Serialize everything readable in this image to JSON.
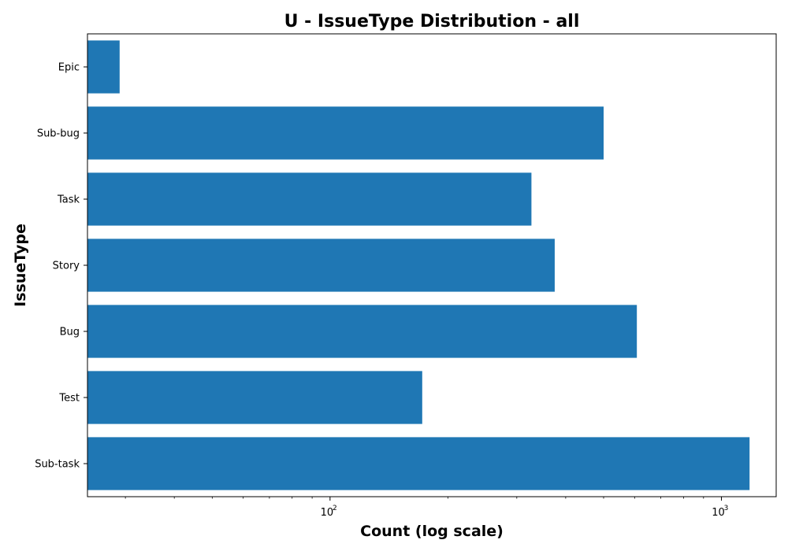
{
  "chart_data": {
    "type": "bar",
    "orientation": "horizontal",
    "title": "U - IssueType Distribution - all",
    "xlabel": "Count (log scale)",
    "ylabel": "IssueType",
    "x_scale": "log",
    "xlim": [
      24,
      1380
    ],
    "x_major_ticks": [
      {
        "base": "10",
        "exp": "2",
        "value": 100
      },
      {
        "base": "10",
        "exp": "3",
        "value": 1000
      }
    ],
    "x_minor_ticks": [
      30,
      40,
      50,
      60,
      70,
      80,
      90,
      200,
      300,
      400,
      500,
      600,
      700,
      800,
      900
    ],
    "categories": [
      "Epic",
      "Sub-bug",
      "Task",
      "Story",
      "Bug",
      "Test",
      "Sub-task"
    ],
    "values": [
      29,
      500,
      327,
      375,
      608,
      172,
      1180
    ],
    "color": "#1f77b4",
    "grid": false,
    "legend": false
  }
}
